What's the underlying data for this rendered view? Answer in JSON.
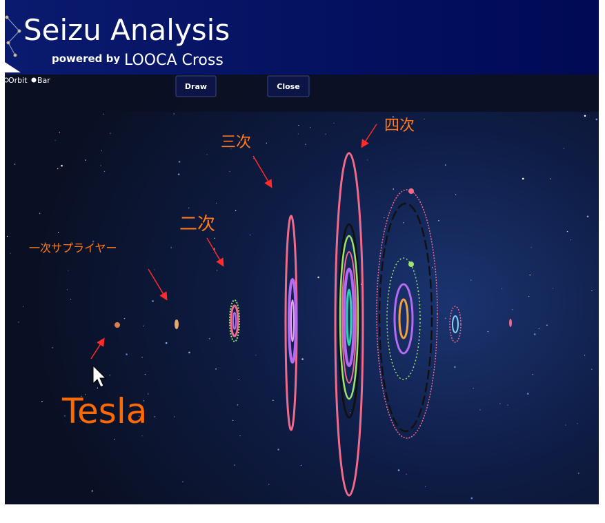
{
  "header": {
    "title": "Seizu Analysis",
    "powered_by": "powered by",
    "brand": "LOOCA Cross"
  },
  "controls": {
    "options": [
      "Orbit",
      "Bar"
    ],
    "buttons": [
      "Draw",
      "Close"
    ]
  },
  "annotations": {
    "tier4": "四次",
    "tier3": "三次",
    "tier2": "二次",
    "tier1": "一次サプライヤー",
    "oem": "Tesla"
  }
}
